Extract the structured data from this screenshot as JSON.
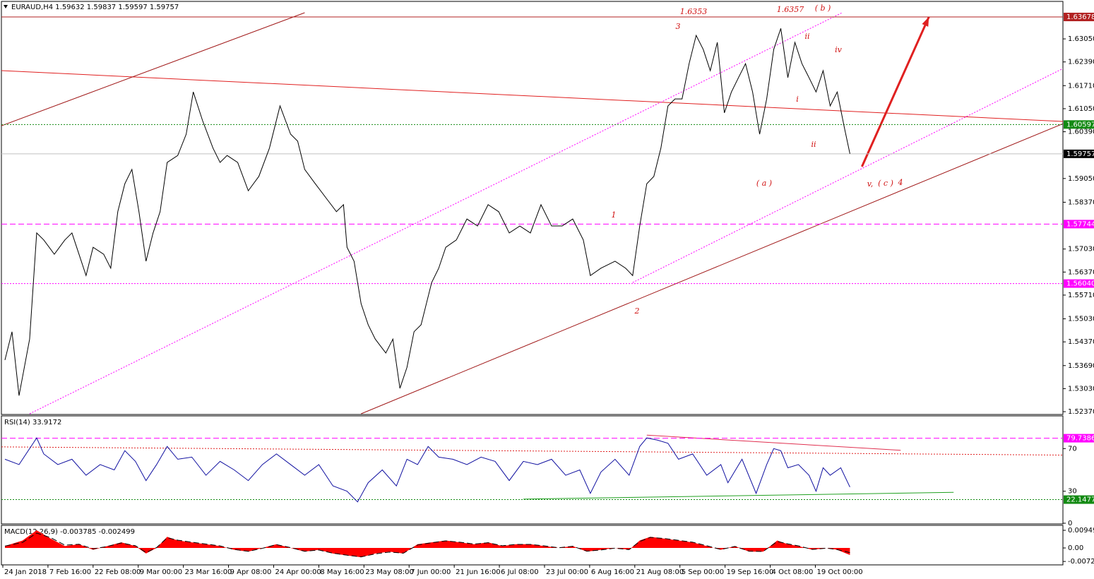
{
  "chart_data": [
    {
      "type": "line",
      "title": "EURAUD,H4  1.59632 1.59837 1.59597 1.59757",
      "color": "#000000",
      "xlim": [
        0,
        1505
      ],
      "xticks": [
        {
          "value": 2,
          "label": "24 Jan 2018"
        },
        {
          "value": 66,
          "label": "7 Feb 16:00"
        },
        {
          "value": 130,
          "label": "22 Feb 08:00"
        },
        {
          "value": 194,
          "label": "9 Mar 00:00"
        },
        {
          "value": 258,
          "label": "23 Mar 16:00"
        },
        {
          "value": 322,
          "label": "9 Apr 08:00"
        },
        {
          "value": 386,
          "label": "24 Apr 00:00"
        },
        {
          "value": 450,
          "label": "8 May 16:00"
        },
        {
          "value": 514,
          "label": "23 May 08:00"
        },
        {
          "value": 578,
          "label": "7 Jun 00:00"
        },
        {
          "value": 642,
          "label": "21 Jun 16:00"
        },
        {
          "value": 706,
          "label": "6 Jul 08:00"
        },
        {
          "value": 770,
          "label": "23 Jul 00:00"
        },
        {
          "value": 834,
          "label": "6 Aug 16:00"
        },
        {
          "value": 898,
          "label": "21 Aug 08:00"
        },
        {
          "value": 962,
          "label": "5 Sep 00:00"
        },
        {
          "value": 1026,
          "label": "19 Sep 16:00"
        },
        {
          "value": 1090,
          "label": "4 Oct 08:00"
        },
        {
          "value": 1154,
          "label": "19 Oct 00:00"
        }
      ],
      "ylim": [
        1.5231,
        1.638
      ],
      "yticks": [
        {
          "value": 1.6305,
          "label": "1.63050"
        },
        {
          "value": 1.6239,
          "label": "1.62390"
        },
        {
          "value": 1.6171,
          "label": "1.61710"
        },
        {
          "value": 1.6105,
          "label": "1.61050"
        },
        {
          "value": 1.6039,
          "label": "1.60390"
        },
        {
          "value": 1.5905,
          "label": "1.59050"
        },
        {
          "value": 1.5837,
          "label": "1.58370"
        },
        {
          "value": 1.5703,
          "label": "1.57030"
        },
        {
          "value": 1.5637,
          "label": "1.56370"
        },
        {
          "value": 1.5571,
          "label": "1.55710"
        },
        {
          "value": 1.5503,
          "label": "1.55030"
        },
        {
          "value": 1.5437,
          "label": "1.54370"
        },
        {
          "value": 1.5369,
          "label": "1.53690"
        },
        {
          "value": 1.5303,
          "label": "1.53030"
        },
        {
          "value": 1.5237,
          "label": "1.52370"
        }
      ],
      "x": [
        5,
        15,
        25,
        40,
        50,
        60,
        75,
        90,
        100,
        110,
        120,
        130,
        145,
        155,
        165,
        175,
        185,
        195,
        205,
        215,
        225,
        235,
        250,
        262,
        272,
        285,
        300,
        310,
        320,
        335,
        350,
        365,
        380,
        395,
        410,
        420,
        430,
        445,
        460,
        475,
        485,
        490,
        500,
        510,
        520,
        530,
        545,
        555,
        565,
        575,
        585,
        595,
        610,
        620,
        630,
        645,
        660,
        675,
        690,
        705,
        720,
        735,
        750,
        765,
        780,
        795,
        810,
        825,
        835,
        850,
        870,
        885,
        895,
        905,
        915,
        925,
        935,
        945,
        955,
        965,
        975,
        985,
        995,
        1005,
        1015,
        1025,
        1035,
        1045,
        1055,
        1065,
        1075,
        1085,
        1095,
        1105,
        1115,
        1125,
        1135,
        1145,
        1155,
        1165,
        1175,
        1185,
        1195,
        1203
      ],
      "values": [
        1.5385,
        1.5466,
        1.5283,
        1.5445,
        1.5749,
        1.5729,
        1.5688,
        1.5729,
        1.5749,
        1.5688,
        1.5627,
        1.5708,
        1.5688,
        1.5648,
        1.581,
        1.589,
        1.5931,
        1.581,
        1.5668,
        1.5749,
        1.581,
        1.5951,
        1.5971,
        1.6032,
        1.6153,
        1.6072,
        1.5992,
        1.5951,
        1.5971,
        1.5951,
        1.587,
        1.5911,
        1.5992,
        1.6113,
        1.6032,
        1.6012,
        1.5931,
        1.589,
        1.585,
        1.581,
        1.583,
        1.5708,
        1.5668,
        1.5546,
        1.5486,
        1.5445,
        1.5405,
        1.5445,
        1.5304,
        1.5364,
        1.5466,
        1.5486,
        1.5607,
        1.5648,
        1.5708,
        1.5729,
        1.5789,
        1.5769,
        1.583,
        1.581,
        1.5749,
        1.5769,
        1.5749,
        1.583,
        1.5769,
        1.5769,
        1.5789,
        1.5729,
        1.5627,
        1.5648,
        1.5668,
        1.5648,
        1.5627,
        1.5769,
        1.589,
        1.5911,
        1.5992,
        1.6113,
        1.6133,
        1.6133,
        1.6234,
        1.6315,
        1.6275,
        1.6214,
        1.6295,
        1.6093,
        1.6153,
        1.6194,
        1.6234,
        1.6153,
        1.6032,
        1.6133,
        1.6275,
        1.6335,
        1.6194,
        1.6295,
        1.6234,
        1.6194,
        1.6153,
        1.6214,
        1.6113,
        1.6153,
        1.6052,
        1.5976
      ],
      "levels": [
        {
          "value": 1.63678,
          "label": "1.63678",
          "color": "#b22222",
          "dash": "solid"
        },
        {
          "value": 1.60597,
          "label": "1.60597",
          "color": "#138a13",
          "dash": "dotted"
        },
        {
          "value": 1.59757,
          "label": "1.59757",
          "color": "#000000",
          "line_color": "#c0c0c0",
          "dash": "solid"
        },
        {
          "value": 1.57744,
          "label": "1.57744",
          "color": "#ff00ff",
          "dash": "dashed"
        },
        {
          "value": 1.5604,
          "label": "1.56040",
          "color": "#ff00ff",
          "dash": "dotted"
        }
      ],
      "trendlines": [
        {
          "x": [
            0,
            1505
          ],
          "y": [
            1.62141,
            1.60684
          ],
          "color": "#e02020",
          "dash": "solid"
        },
        {
          "x": [
            0,
            430
          ],
          "y": [
            1.6056,
            1.638
          ],
          "color": "#a01818",
          "dash": "solid"
        },
        {
          "x": [
            510,
            1505
          ],
          "y": [
            1.5231,
            1.6062
          ],
          "color": "#a01818",
          "dash": "solid"
        },
        {
          "x": [
            40,
            1192
          ],
          "y": [
            1.5231,
            1.638
          ],
          "color": "#ff00ff",
          "dash": "dotted"
        },
        {
          "x": [
            895,
            1505
          ],
          "y": [
            1.5607,
            1.622
          ],
          "color": "#ff00ff",
          "dash": "dotted"
        },
        {
          "x": [
            1220,
            1315
          ],
          "y": [
            1.5939,
            1.6368
          ],
          "color": "#e02020",
          "dash": "solid",
          "arrow": true
        }
      ],
      "annotations": [
        "1.6353",
        "1.6357",
        "( b )",
        "3",
        "ii",
        "iv",
        "i",
        "ii",
        "( a )",
        "v,",
        "( c )",
        "4",
        "1",
        "2"
      ]
    },
    {
      "type": "line",
      "title": "RSI(14) 33.9172",
      "color": "#1010a0",
      "ylim": [
        0,
        100
      ],
      "yticks": [
        70,
        30,
        0
      ],
      "x": [
        5,
        25,
        45,
        50,
        60,
        80,
        100,
        120,
        140,
        160,
        175,
        190,
        205,
        220,
        235,
        250,
        270,
        290,
        310,
        330,
        350,
        370,
        390,
        410,
        430,
        450,
        470,
        490,
        505,
        520,
        540,
        560,
        575,
        590,
        605,
        620,
        640,
        660,
        680,
        700,
        720,
        740,
        760,
        780,
        800,
        820,
        835,
        850,
        870,
        890,
        905,
        915,
        930,
        945,
        960,
        980,
        1000,
        1020,
        1030,
        1050,
        1070,
        1085,
        1095,
        1105,
        1115,
        1130,
        1145,
        1155,
        1165,
        1175,
        1190,
        1203
      ],
      "values": [
        60,
        55,
        75,
        80,
        65,
        55,
        60,
        45,
        55,
        50,
        68,
        58,
        40,
        55,
        72,
        60,
        62,
        45,
        58,
        50,
        40,
        55,
        65,
        55,
        45,
        55,
        35,
        30,
        20,
        38,
        50,
        35,
        60,
        55,
        72,
        62,
        60,
        55,
        62,
        58,
        40,
        58,
        55,
        60,
        45,
        50,
        28,
        48,
        60,
        45,
        72,
        80,
        78,
        75,
        60,
        65,
        45,
        55,
        38,
        60,
        28,
        55,
        70,
        68,
        52,
        55,
        45,
        30,
        52,
        45,
        52,
        33.9172
      ],
      "levels": [
        {
          "value": 79.7386,
          "label": "79.7386",
          "color": "#ff00ff",
          "dash": "dashed"
        },
        {
          "value": 22.1477,
          "label": "22.1477",
          "color": "#138a13",
          "dash": "dotted"
        }
      ],
      "trendlines": [
        {
          "x": [
            915,
            1275
          ],
          "y": [
            82.6,
            68.4
          ],
          "color": "#e03050",
          "dash": "solid"
        },
        {
          "x": [
            0,
            1505
          ],
          "y": [
            71.6,
            63.9
          ],
          "color": "#e02020",
          "dash": "dotted"
        },
        {
          "x": [
            740,
            1350
          ],
          "y": [
            22.6,
            29
          ],
          "color": "#20a020",
          "dash": "solid"
        }
      ]
    },
    {
      "type": "area",
      "title": "MACD(12,26,9) -0.003785 -0.002499",
      "ylim": [
        -0.0091,
        0.0114
      ],
      "yticks": [
        0.009492,
        {
          "value": 0,
          "label": "0.00"
        },
        -0.007258
      ],
      "x": [
        5,
        30,
        50,
        70,
        90,
        110,
        130,
        150,
        170,
        190,
        205,
        220,
        235,
        250,
        270,
        290,
        310,
        330,
        350,
        370,
        390,
        410,
        430,
        450,
        470,
        490,
        510,
        530,
        550,
        570,
        590,
        610,
        630,
        650,
        670,
        690,
        710,
        730,
        750,
        770,
        790,
        810,
        830,
        850,
        870,
        890,
        905,
        920,
        940,
        960,
        980,
        1000,
        1020,
        1040,
        1060,
        1080,
        1100,
        1115,
        1130,
        1150,
        1170,
        1185,
        1203
      ],
      "series": [
        {
          "color": "#ff0000",
          "fill": true,
          "values": [
            0.001,
            0.004,
            0.0095,
            0.005,
            0.001,
            0.002,
            -0.001,
            0.001,
            0.003,
            0.001,
            -0.003,
            0,
            0.006,
            0.004,
            0.003,
            0.002,
            0.001,
            -0.001,
            -0.002,
            0,
            0.002,
            0,
            -0.002,
            -0.001,
            -0.003,
            -0.004,
            -0.005,
            -0.003,
            -0.002,
            -0.003,
            0.002,
            0.003,
            0.004,
            0.003,
            0.002,
            0.003,
            0.001,
            0.002,
            0.002,
            0.001,
            0,
            0.001,
            -0.002,
            -0.001,
            0,
            -0.001,
            0.004,
            0.006,
            0.005,
            0.004,
            0.003,
            0.001,
            -0.001,
            0.001,
            -0.002,
            -0.002,
            0.004,
            0.002,
            0.001,
            -0.001,
            0,
            -0.001,
            -0.003785
          ]
        },
        {
          "color": "#000000",
          "dash": "dashed",
          "values": [
            0.001,
            0.003,
            0.008,
            0.0055,
            0.0015,
            0.002,
            -0.0005,
            0.0008,
            0.0027,
            0.0012,
            -0.0025,
            0.0002,
            0.0055,
            0.0042,
            0.0031,
            0.0021,
            0.0011,
            -0.0008,
            -0.0018,
            -0.0002,
            0.0018,
            0.0002,
            -0.0018,
            -0.0011,
            -0.0028,
            -0.0039,
            -0.0048,
            -0.0032,
            -0.0022,
            -0.0028,
            0.0016,
            0.0028,
            0.0038,
            0.0031,
            0.0021,
            0.0028,
            0.0012,
            0.0019,
            0.0019,
            0.0011,
            0.0001,
            0.0009,
            -0.0017,
            -0.0011,
            -0.0001,
            -0.0009,
            0.0035,
            0.0057,
            0.0051,
            0.0041,
            0.0031,
            0.0012,
            -0.0008,
            0.0008,
            -0.0017,
            -0.0019,
            0.0035,
            0.0022,
            0.0011,
            -0.0008,
            -0.0001,
            -0.0009,
            -0.002499
          ]
        }
      ]
    }
  ]
}
